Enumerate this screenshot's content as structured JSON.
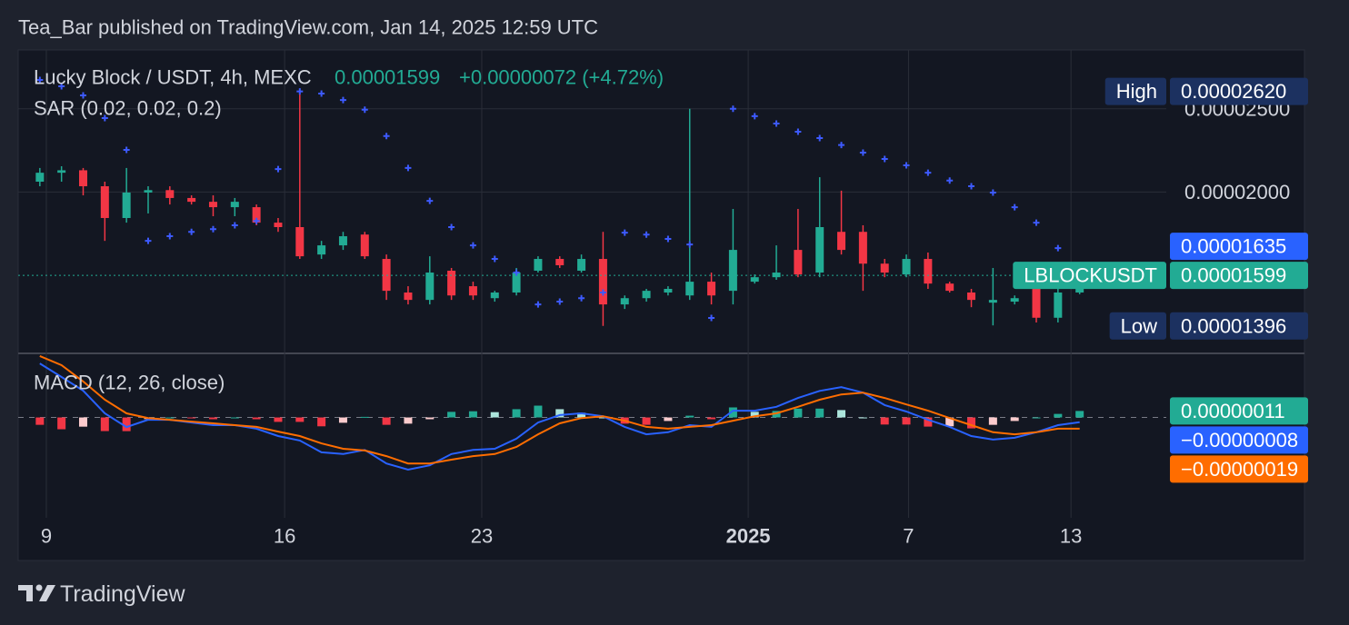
{
  "header": "Tea_Bar published on TradingView.com, Jan 14, 2025 12:59 UTC",
  "footer": "TradingView",
  "chart_data": [
    {
      "type": "candlestick",
      "title": "Lucky Block / USDT, 4h, MEXC",
      "change": "+0.00000072 (+4.72%)",
      "log_scale": true,
      "up_color": "#22ab94",
      "down_color": "#f23645",
      "xlim": [
        -1,
        52
      ],
      "ylim": [
        1.3e-05,
        2.928e-05
      ],
      "yticks": [
        {
          "value": 2.5e-05,
          "label": "0.00002500"
        },
        {
          "value": 2e-05,
          "label": "0.00002000"
        }
      ],
      "grid": true,
      "open": [
        2.056e-05,
        2.106e-05,
        2.12e-05,
        2.031e-05,
        1.865e-05,
        1.997e-05,
        2.01e-05,
        1.968e-05,
        1.948e-05,
        1.92e-05,
        1.92e-05,
        1.842e-05,
        1.82e-05,
        1.691e-05,
        1.733e-05,
        1.784e-05,
        1.671e-05,
        1.527e-05,
        1.497e-05,
        1.619e-05,
        1.553e-05,
        1.504e-05,
        1.527e-05,
        1.619e-05,
        1.671e-05,
        1.619e-05,
        1.671e-05,
        1.479e-05,
        1.504e-05,
        1.527e-05,
        1.515e-05,
        1.572e-05,
        1.534e-05,
        1.572e-05,
        1.591e-05,
        1.712e-05,
        1.611e-05,
        1.797e-05,
        1.797e-05,
        1.65e-05,
        1.603e-05,
        1.671e-05,
        1.564e-05,
        1.527e-05,
        1.486e-05,
        1.49e-05,
        1.553e-05,
        1.427e-05,
        1.527e-05
      ],
      "high": [
        2.133e-05,
        2.143e-05,
        2.133e-05,
        2.056e-05,
        2.133e-05,
        2.031e-05,
        2.031e-05,
        1.982e-05,
        1.982e-05,
        1.968e-05,
        1.934e-05,
        1.865e-05,
        2.62e-05,
        1.754e-05,
        1.797e-05,
        1.797e-05,
        1.691e-05,
        1.553e-05,
        1.683e-05,
        1.631e-05,
        1.572e-05,
        1.534e-05,
        1.631e-05,
        1.683e-05,
        1.683e-05,
        1.691e-05,
        1.797e-05,
        1.515e-05,
        1.542e-05,
        1.553e-05,
        2.5e-05,
        1.611e-05,
        1.911e-05,
        1.603e-05,
        1.733e-05,
        1.911e-05,
        2.081e-05,
        2.007e-05,
        1.829e-05,
        1.671e-05,
        1.691e-05,
        1.7e-05,
        1.572e-05,
        1.542e-05,
        1.631e-05,
        1.515e-05,
        1.591e-05,
        1.611e-05,
        1.603e-05
      ],
      "low": [
        2.031e-05,
        2.056e-05,
        1.982e-05,
        1.754e-05,
        1.842e-05,
        1.888e-05,
        1.934e-05,
        1.934e-05,
        1.874e-05,
        1.874e-05,
        1.829e-05,
        1.797e-05,
        1.671e-05,
        1.671e-05,
        1.712e-05,
        1.671e-05,
        1.497e-05,
        1.479e-05,
        1.479e-05,
        1.497e-05,
        1.497e-05,
        1.49e-05,
        1.515e-05,
        1.611e-05,
        1.631e-05,
        1.611e-05,
        1.396e-05,
        1.461e-05,
        1.49e-05,
        1.515e-05,
        1.497e-05,
        1.479e-05,
        1.479e-05,
        1.564e-05,
        1.58e-05,
        1.591e-05,
        1.591e-05,
        1.691e-05,
        1.534e-05,
        1.591e-05,
        1.591e-05,
        1.542e-05,
        1.527e-05,
        1.468e-05,
        1.398e-05,
        1.479e-05,
        1.409e-05,
        1.409e-05,
        1.52e-05
      ],
      "close": [
        2.106e-05,
        2.12e-05,
        2.031e-05,
        1.865e-05,
        1.997e-05,
        2.01e-05,
        1.968e-05,
        1.948e-05,
        1.92e-05,
        1.948e-05,
        1.842e-05,
        1.82e-05,
        1.683e-05,
        1.733e-05,
        1.776e-05,
        1.683e-05,
        1.534e-05,
        1.497e-05,
        1.611e-05,
        1.515e-05,
        1.515e-05,
        1.527e-05,
        1.611e-05,
        1.671e-05,
        1.643e-05,
        1.671e-05,
        1.479e-05,
        1.504e-05,
        1.534e-05,
        1.542e-05,
        1.572e-05,
        1.515e-05,
        1.712e-05,
        1.591e-05,
        1.611e-05,
        1.603e-05,
        1.82e-05,
        1.712e-05,
        1.65e-05,
        1.611e-05,
        1.671e-05,
        1.564e-05,
        1.534e-05,
        1.497e-05,
        1.497e-05,
        1.504e-05,
        1.427e-05,
        1.527e-05,
        1.599e-05
      ],
      "sar": {
        "label": "SAR (0.02, 0.02, 0.2)",
        "color": "#3d5afe",
        "values": [
          2.702e-05,
          2.656e-05,
          2.592e-05,
          2.439e-05,
          2.239e-05,
          1.754e-05,
          1.776e-05,
          1.797e-05,
          1.81e-05,
          1.829e-05,
          1.85e-05,
          2.127e-05,
          2.62e-05,
          2.605e-05,
          2.56e-05,
          2.494e-05,
          2.324e-05,
          2.133e-05,
          1.953e-05,
          1.82e-05,
          1.733e-05,
          1.671e-05,
          1.611e-05,
          1.479e-05,
          1.49e-05,
          1.504e-05,
          1.527e-05,
          1.793e-05,
          1.784e-05,
          1.763e-05,
          1.737e-05,
          1.426e-05,
          2.5e-05,
          2.451e-05,
          2.403e-05,
          2.351e-05,
          2.311e-05,
          2.269e-05,
          2.223e-05,
          2.185e-05,
          2.148e-05,
          2.106e-05,
          2.062e-05,
          2.031e-05,
          1.997e-05,
          1.92e-05,
          1.842e-05,
          1.72e-05,
          1.635e-05
        ]
      },
      "tags": [
        {
          "name": "LBLOCKUSDT",
          "value": 1.599e-05,
          "label": "0.00001599",
          "color": "#22ab94"
        },
        {
          "name": "High",
          "value": 2.62e-05,
          "label": "0.00002620",
          "color": "#1c3160"
        },
        {
          "name": "Low",
          "value": 1.396e-05,
          "label": "0.00001396",
          "color": "#1c3160"
        },
        {
          "value": 1.635e-05,
          "label": "0.00001635",
          "color": "#2962ff"
        }
      ]
    },
    {
      "type": "macd",
      "title": "MACD (12, 26, close)",
      "xlim": [
        -1,
        52
      ],
      "xticks": [
        {
          "value": 0.3,
          "label": "9"
        },
        {
          "value": 11.3,
          "label": "16"
        },
        {
          "value": 20.4,
          "label": "23"
        },
        {
          "value": 32.7,
          "label": "2025",
          "bold": true
        },
        {
          "value": 40.1,
          "label": "7"
        },
        {
          "value": 47.6,
          "label": "13"
        }
      ],
      "ylim": [
        -1.7e-06,
        1.07e-06
      ],
      "series": [
        {
          "style": "histogram",
          "colors": [
            "#22ab94",
            "#ace5dc",
            "#f23645",
            "#fccbcd"
          ],
          "values": [
            -1.25e-07,
            -2e-07,
            -1.56e-07,
            -2.31e-07,
            -2.32e-07,
            -2.8e-08,
            0,
            -1.5e-08,
            -3e-08,
            0,
            -3e-08,
            -7.5e-08,
            -7.5e-08,
            -1.5e-07,
            -9e-08,
            1e-08,
            -1.25e-07,
            -1.05e-07,
            -3e-08,
            9.5e-08,
            1.05e-07,
            9e-08,
            1.4e-07,
            2e-07,
            1.4e-07,
            8e-08,
            0,
            -1.05e-07,
            -1.25e-07,
            -6e-08,
            3e-08,
            -3e-08,
            1.7e-07,
            9.5e-08,
            1.1e-07,
            1.5e-07,
            1.5e-07,
            1.25e-07,
            0,
            -1.2e-07,
            -1.2e-07,
            -1.55e-07,
            -1.5e-07,
            -1.85e-07,
            -1.25e-07,
            -6e-08,
            0,
            6e-08,
            1.1e-07
          ]
        },
        {
          "style": "line",
          "color": "#2962ff",
          "values": [
            9.15e-07,
            6.85e-07,
            4.54e-07,
            6.9e-08,
            -1.62e-07,
            -3.8e-08,
            -4e-08,
            -8.5e-08,
            -1.3e-07,
            -1.3e-07,
            -1.9e-07,
            -3.15e-07,
            -3.9e-07,
            -5.9e-07,
            -6.2e-07,
            -5.5e-07,
            -7.8e-07,
            -8.85e-07,
            -8.1e-07,
            -6.2e-07,
            -5.5e-07,
            -5.3e-07,
            -3.6e-07,
            -8.5e-08,
            4e-08,
            7e-08,
            2e-08,
            -1.6e-07,
            -2.85e-07,
            -2.5e-07,
            -1.3e-07,
            -1.6e-07,
            1.15e-07,
            1.15e-07,
            1.8e-07,
            3.3e-07,
            4.5e-07,
            5.15e-07,
            4.2e-07,
            2.1e-07,
            1e-07,
            -4e-08,
            -1.6e-07,
            -3.15e-07,
            -3.75e-07,
            -3.45e-07,
            -2.5e-07,
            -1.3e-07,
            -8e-08
          ]
        },
        {
          "style": "line",
          "color": "#ff6d00",
          "values": [
            1.04e-06,
            8.85e-07,
            6.1e-07,
            3e-07,
            7e-08,
            -1e-08,
            -4e-08,
            -7e-08,
            -1e-07,
            -1.3e-07,
            -1.6e-07,
            -2.4e-07,
            -3.15e-07,
            -4.4e-07,
            -5.3e-07,
            -5.6e-07,
            -6.55e-07,
            -7.8e-07,
            -7.8e-07,
            -7.15e-07,
            -6.55e-07,
            -6.2e-07,
            -5e-07,
            -2.85e-07,
            -1e-07,
            -1e-08,
            2e-08,
            -5.5e-08,
            -1.6e-07,
            -1.9e-07,
            -1.6e-07,
            -1.3e-07,
            -5.5e-08,
            2e-08,
            7e-08,
            1.8e-07,
            3e-07,
            3.9e-07,
            4.2e-07,
            3.3e-07,
            2.2e-07,
            1.15e-07,
            -1e-08,
            -1.3e-07,
            -2.5e-07,
            -2.85e-07,
            -2.5e-07,
            -1.9e-07,
            -1.9e-07
          ]
        }
      ],
      "tags": [
        {
          "value": 1.1e-07,
          "label": "0.00000011",
          "color": "#22ab94"
        },
        {
          "value": -8e-08,
          "label": "−0.00000008",
          "color": "#2962ff"
        },
        {
          "value": -1.9e-07,
          "label": "−0.00000019",
          "color": "#ff6d00"
        }
      ]
    }
  ]
}
